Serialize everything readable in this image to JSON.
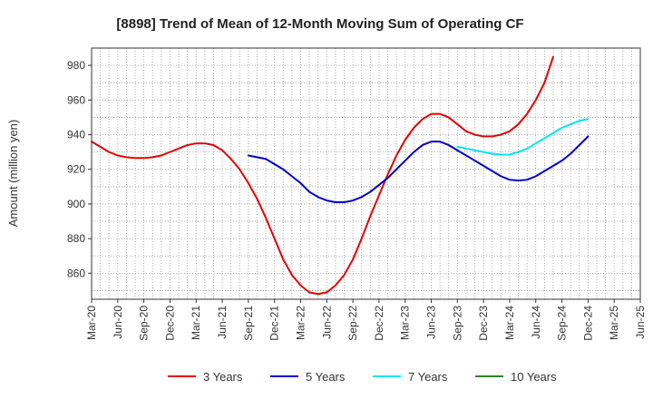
{
  "chart_data": {
    "type": "line",
    "title": "[8898]  Trend of Mean of 12-Month Moving Sum of Operating CF",
    "xlabel": "",
    "ylabel": "Amount (million yen)",
    "ylim": [
      845,
      990
    ],
    "yticks": [
      860,
      880,
      900,
      920,
      940,
      960,
      980
    ],
    "xticks": [
      "Mar-20",
      "Jun-20",
      "Sep-20",
      "Dec-20",
      "Mar-21",
      "Jun-21",
      "Sep-21",
      "Dec-21",
      "Mar-22",
      "Jun-22",
      "Sep-22",
      "Dec-22",
      "Mar-23",
      "Jun-23",
      "Sep-23",
      "Dec-23",
      "Mar-24",
      "Jun-24",
      "Sep-24",
      "Dec-24",
      "Mar-25",
      "Jun-25"
    ],
    "x_start": "Mar-20",
    "grid": true,
    "legend_position": "bottom",
    "series": [
      {
        "name": "3 Years",
        "color": "#e60000",
        "start_index": 0,
        "values": [
          936,
          933,
          930,
          928,
          927,
          926.5,
          926.5,
          927,
          928,
          930,
          932,
          934,
          935,
          935,
          934,
          931,
          926,
          920,
          912,
          903,
          892,
          880,
          868,
          859,
          853,
          849,
          848,
          849,
          853,
          859,
          868,
          880,
          893,
          905,
          917,
          928,
          937,
          944,
          949,
          952,
          952,
          950,
          946,
          942,
          940,
          939,
          939,
          940,
          942,
          946,
          952,
          960,
          970,
          985
        ]
      },
      {
        "name": "5 Years",
        "color": "#0000cc",
        "start_index": 18,
        "values": [
          928,
          927,
          926,
          923,
          920,
          916,
          912,
          907,
          904,
          902,
          901,
          901,
          902,
          904,
          907,
          911,
          915,
          920,
          925,
          930,
          934,
          936,
          936,
          934,
          931,
          928,
          925,
          922,
          919,
          916,
          914,
          913.5,
          914,
          916,
          919,
          922,
          925,
          929,
          934,
          939
        ]
      },
      {
        "name": "7 Years",
        "color": "#00e5ee",
        "start_index": 42,
        "values": [
          933,
          932,
          931,
          930,
          929,
          928.5,
          928.5,
          930,
          932,
          935,
          938,
          941,
          944,
          946,
          948,
          949
        ]
      },
      {
        "name": "10 Years",
        "color": "#228b22",
        "start_index": 0,
        "values": []
      }
    ]
  }
}
